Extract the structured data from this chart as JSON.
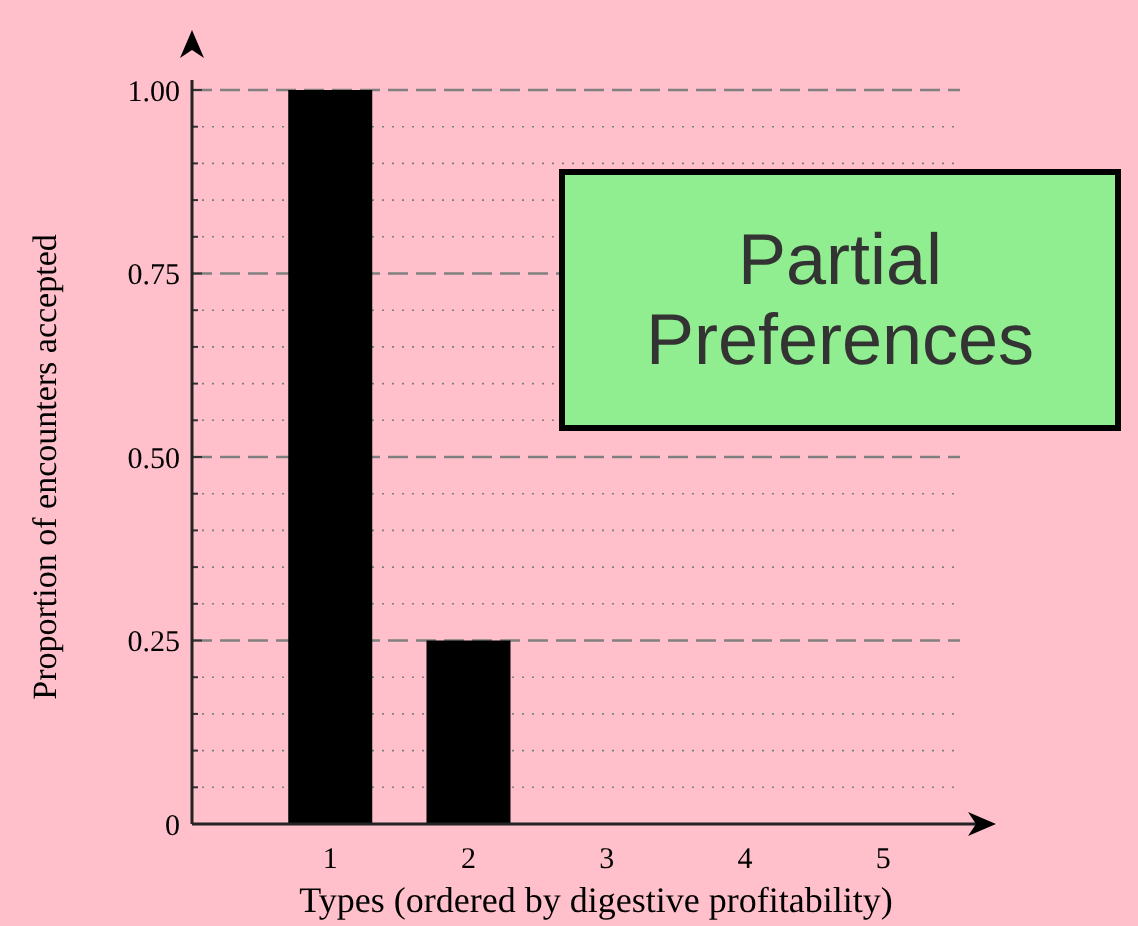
{
  "chart_data": {
    "type": "bar",
    "xlabel": "Types (ordered by digestive profitability)",
    "ylabel": "Proportion of encounters accepted",
    "categories": [
      "1",
      "2",
      "3",
      "4",
      "5"
    ],
    "values": [
      1.0,
      0.25,
      0,
      0,
      0
    ],
    "color": "#000000",
    "ylim": [
      0,
      1
    ],
    "yticks": [
      {
        "value": 0,
        "label": "0"
      },
      {
        "value": 0.05,
        "label": null
      },
      {
        "value": 0.1,
        "label": null
      },
      {
        "value": 0.15,
        "label": null
      },
      {
        "value": 0.2,
        "label": null
      },
      {
        "value": 0.25,
        "label": "0.25"
      },
      {
        "value": 0.3,
        "label": null
      },
      {
        "value": 0.35,
        "label": null
      },
      {
        "value": 0.4,
        "label": null
      },
      {
        "value": 0.45,
        "label": null
      },
      {
        "value": 0.5,
        "label": "0.50"
      },
      {
        "value": 0.55,
        "label": null
      },
      {
        "value": 0.6,
        "label": null
      },
      {
        "value": 0.65,
        "label": null
      },
      {
        "value": 0.7,
        "label": null
      },
      {
        "value": 0.75,
        "label": "0.75"
      },
      {
        "value": 0.8,
        "label": null
      },
      {
        "value": 0.85,
        "label": null
      },
      {
        "value": 0.9,
        "label": null
      },
      {
        "value": 0.95,
        "label": null
      },
      {
        "value": 1.0,
        "label": "1.00"
      }
    ],
    "grid": true,
    "annotations": [
      "Partial Preferences"
    ]
  }
}
